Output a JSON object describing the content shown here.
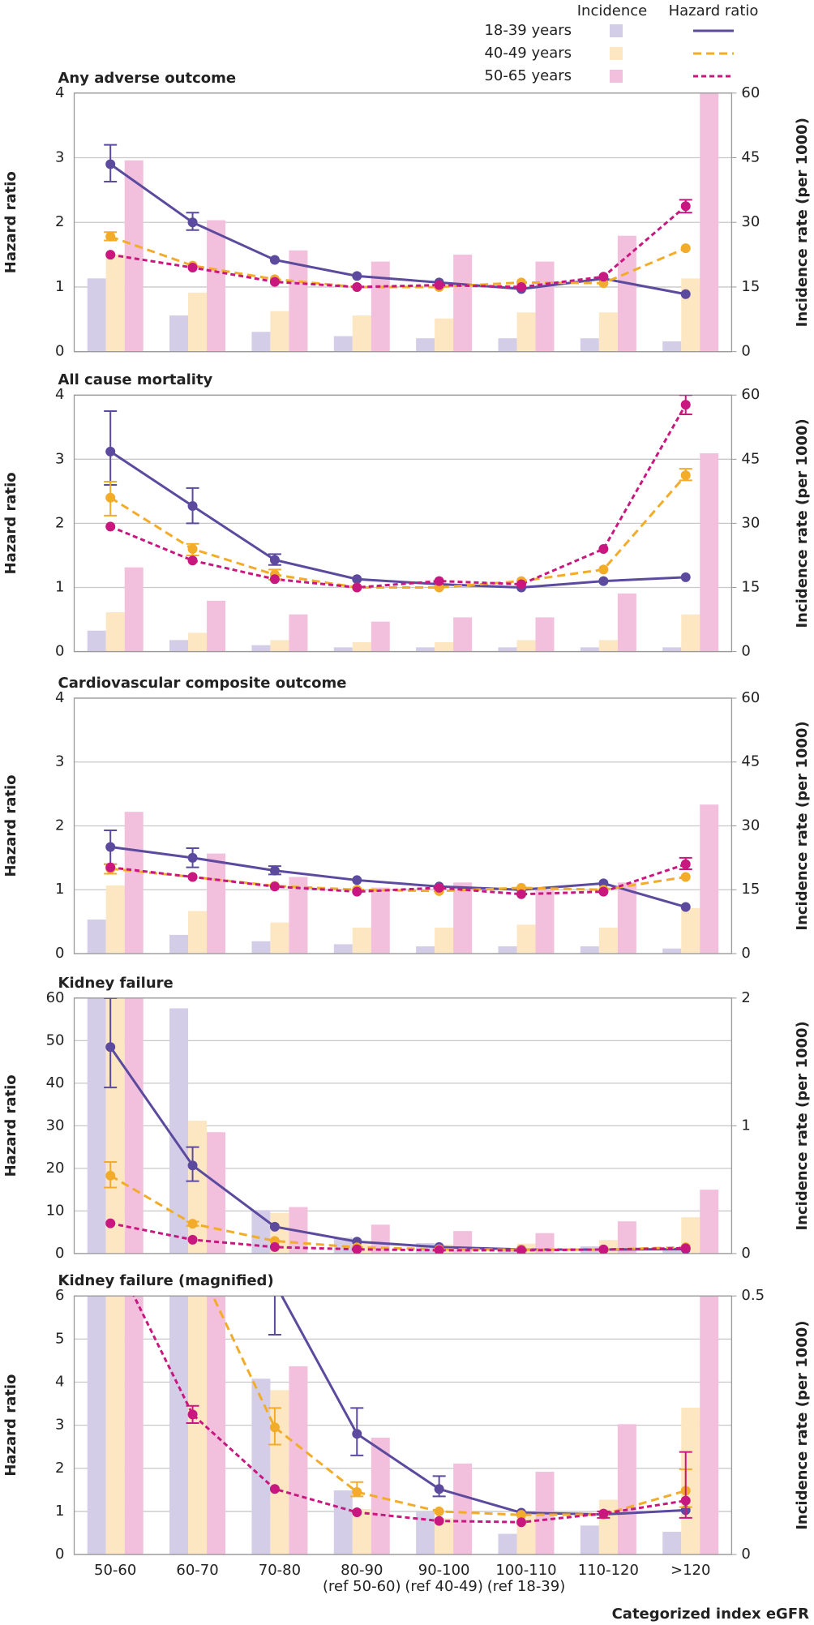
{
  "legend": {
    "incidence_header": "Incidence",
    "hazard_header": "Hazard ratio",
    "groups": [
      {
        "name": "18-39 years",
        "bar_color": "#d3cde8",
        "line_color": "#5b4a9e",
        "line_style": "solid"
      },
      {
        "name": "40-49 years",
        "bar_color": "#fde7c2",
        "line_color": "#f2ac2a",
        "line_style": "dashed"
      },
      {
        "name": "50-65 years",
        "bar_color": "#f2bfdd",
        "line_color": "#c8187f",
        "line_style": "dotted"
      }
    ]
  },
  "categories": [
    "50-60",
    "60-70",
    "70-80",
    "80-90",
    "90-100",
    "100-110",
    "110-120",
    ">120"
  ],
  "category_notes": [
    null,
    null,
    null,
    "(ref 50-60)",
    "(ref 40-49)",
    "(ref 18-39)",
    null,
    null
  ],
  "xlabel": "Categorized index eGFR",
  "chart_data": [
    {
      "type": "bar_line",
      "title": "Any adverse outcome",
      "ylabel": "Hazard ratio",
      "y2label": "Incidence rate (per 1000)",
      "ylim": [
        0,
        4
      ],
      "yticks": [
        0,
        1,
        2,
        3,
        4
      ],
      "y2lim": [
        0,
        60
      ],
      "y2ticks": [
        0,
        15,
        30,
        45,
        60
      ],
      "grid": true,
      "incidence": [
        [
          17,
          8.4,
          4.6,
          3.6,
          3.1,
          3.1,
          3.1,
          2.4
        ],
        [
          22.5,
          13.7,
          9.4,
          8.4,
          7.7,
          9.1,
          9.1,
          17
        ],
        [
          44.4,
          30.5,
          23.5,
          20.9,
          22.5,
          20.9,
          26.9,
          60
        ]
      ],
      "hazard_ratio": [
        [
          2.9,
          2.0,
          1.42,
          1.17,
          1.07,
          0.97,
          1.13,
          0.89
        ],
        [
          1.78,
          1.33,
          1.12,
          1.0,
          1.0,
          1.07,
          1.06,
          1.6
        ],
        [
          1.5,
          1.3,
          1.08,
          1.0,
          1.03,
          1.0,
          1.16,
          2.25
        ]
      ],
      "hr_lower": [
        [
          2.63,
          1.88,
          null,
          null,
          null,
          null,
          null,
          null
        ],
        [
          1.72,
          null,
          null,
          null,
          null,
          null,
          null,
          null
        ],
        [
          null,
          null,
          null,
          null,
          null,
          null,
          null,
          2.15
        ]
      ],
      "hr_upper": [
        [
          3.2,
          2.15,
          null,
          null,
          null,
          null,
          null,
          null
        ],
        [
          1.85,
          null,
          null,
          null,
          null,
          null,
          null,
          null
        ],
        [
          null,
          null,
          null,
          null,
          null,
          null,
          null,
          2.35
        ]
      ]
    },
    {
      "type": "bar_line",
      "title": "All cause mortality",
      "ylabel": "Hazard ratio",
      "y2label": "Incidence rate (per 1000)",
      "ylim": [
        0,
        4
      ],
      "yticks": [
        0,
        1,
        2,
        3,
        4
      ],
      "y2lim": [
        0,
        60
      ],
      "y2ticks": [
        0,
        15,
        30,
        45,
        60
      ],
      "grid": true,
      "incidence": [
        [
          4.9,
          2.7,
          1.5,
          1,
          1,
          1,
          1,
          1
        ],
        [
          9.2,
          4.4,
          2.7,
          2.2,
          2.2,
          2.7,
          2.7,
          8.7
        ],
        [
          19.7,
          11.9,
          8.7,
          7,
          8,
          8,
          13.6,
          46.4
        ]
      ],
      "hazard_ratio": [
        [
          3.12,
          2.27,
          1.43,
          1.13,
          1.05,
          1.0,
          1.1,
          1.16
        ],
        [
          2.4,
          1.6,
          1.2,
          1.0,
          1.0,
          1.1,
          1.28,
          2.75
        ],
        [
          1.95,
          1.42,
          1.13,
          1.0,
          1.1,
          1.05,
          1.6,
          3.85
        ]
      ],
      "hr_lower": [
        [
          2.6,
          2.0,
          1.35,
          null,
          null,
          null,
          null,
          null
        ],
        [
          2.12,
          1.5,
          1.12,
          null,
          null,
          null,
          null,
          2.67
        ],
        [
          null,
          null,
          null,
          null,
          null,
          null,
          null,
          3.7
        ]
      ],
      "hr_upper": [
        [
          3.75,
          2.55,
          1.52,
          null,
          null,
          null,
          null,
          null
        ],
        [
          2.65,
          1.68,
          1.28,
          null,
          null,
          null,
          null,
          2.85
        ],
        [
          null,
          null,
          null,
          null,
          null,
          null,
          null,
          4.0
        ]
      ]
    },
    {
      "type": "bar_line",
      "title": "Cardiovascular composite outcome",
      "ylabel": "Hazard ratio",
      "y2label": "Incidence rate (per 1000)",
      "ylim": [
        0,
        4
      ],
      "yticks": [
        0,
        1,
        2,
        3,
        4
      ],
      "y2lim": [
        0,
        60
      ],
      "y2ticks": [
        0,
        15,
        30,
        45,
        60
      ],
      "grid": true,
      "incidence": [
        [
          8,
          4.4,
          2.9,
          2.2,
          1.7,
          1.7,
          1.7,
          1.2
        ],
        [
          16,
          10,
          7.3,
          6.1,
          6.1,
          6.8,
          6.1,
          10.7
        ],
        [
          33.3,
          23.5,
          18,
          15.5,
          16.7,
          15,
          16.7,
          35
        ]
      ],
      "hazard_ratio": [
        [
          1.67,
          1.5,
          1.3,
          1.15,
          1.05,
          1.0,
          1.1,
          0.73
        ],
        [
          1.33,
          1.2,
          1.06,
          1.0,
          0.98,
          1.03,
          1.0,
          1.2
        ],
        [
          1.35,
          1.2,
          1.05,
          0.97,
          1.03,
          0.93,
          0.97,
          1.4
        ]
      ],
      "hr_lower": [
        [
          1.4,
          1.35,
          1.24,
          null,
          null,
          null,
          null,
          null
        ],
        [
          1.25,
          null,
          null,
          null,
          null,
          null,
          null,
          null
        ],
        [
          null,
          null,
          null,
          null,
          null,
          null,
          null,
          1.32
        ]
      ],
      "hr_upper": [
        [
          1.93,
          1.65,
          1.37,
          null,
          null,
          null,
          null,
          null
        ],
        [
          1.4,
          null,
          null,
          null,
          null,
          null,
          null,
          null
        ],
        [
          null,
          null,
          null,
          null,
          null,
          null,
          null,
          1.5
        ]
      ]
    },
    {
      "type": "bar_line",
      "title": "Kidney failure",
      "ylabel": "Hazard ratio",
      "y2label": "Incidence rate (per 1000)",
      "ylim": [
        0,
        60
      ],
      "yticks": [
        0,
        10,
        20,
        30,
        40,
        50,
        60
      ],
      "y2lim": [
        0,
        2
      ],
      "y2ticks": [
        0,
        1,
        2
      ],
      "grid": true,
      "incidence": [
        [
          2,
          1.92,
          0.34,
          0.124,
          0.082,
          0.04,
          0.056,
          0.044
        ],
        [
          2,
          1.04,
          0.318,
          0.088,
          0.07,
          0.078,
          0.106,
          0.284
        ],
        [
          2,
          0.95,
          0.364,
          0.226,
          0.176,
          0.16,
          0.252,
          0.5
        ]
      ],
      "hazard_ratio": [
        [
          48.5,
          20.7,
          6.3,
          2.8,
          1.52,
          0.97,
          0.93,
          1.03
        ],
        [
          18.3,
          7.0,
          2.95,
          1.45,
          1.0,
          0.92,
          0.93,
          1.48
        ],
        [
          7.1,
          3.25,
          1.52,
          0.98,
          0.78,
          0.75,
          0.95,
          1.25
        ]
      ],
      "hr_lower": [
        [
          39,
          17,
          null,
          null,
          null,
          null,
          null,
          null
        ],
        [
          15.5,
          6.5,
          null,
          null,
          null,
          null,
          null,
          null
        ],
        [
          null,
          null,
          null,
          null,
          null,
          null,
          null,
          null
        ]
      ],
      "hr_upper": [
        [
          60,
          25,
          null,
          null,
          null,
          null,
          null,
          null
        ],
        [
          21.5,
          7.5,
          null,
          null,
          null,
          null,
          null,
          null
        ],
        [
          null,
          null,
          null,
          null,
          null,
          null,
          null,
          null
        ]
      ]
    },
    {
      "type": "bar_line",
      "title": "Kidney failure (magnified)",
      "ylabel": "Hazard ratio",
      "y2label": "Incidence rate (per 1000)",
      "ylim": [
        0,
        6
      ],
      "yticks": [
        0,
        1,
        2,
        3,
        4,
        5,
        6
      ],
      "y2lim": [
        0,
        0.5
      ],
      "y2ticks": [
        0,
        0.5
      ],
      "grid": true,
      "incidence": [
        [
          2,
          1.92,
          0.34,
          0.124,
          0.082,
          0.04,
          0.056,
          0.044
        ],
        [
          2,
          1.04,
          0.318,
          0.088,
          0.07,
          0.078,
          0.106,
          0.284
        ],
        [
          2,
          0.95,
          0.364,
          0.226,
          0.176,
          0.16,
          0.252,
          0.5
        ]
      ],
      "hazard_ratio": [
        [
          48.5,
          20.7,
          6.3,
          2.8,
          1.52,
          0.97,
          0.93,
          1.03
        ],
        [
          18.3,
          7.0,
          2.95,
          1.45,
          1.0,
          0.92,
          0.93,
          1.48
        ],
        [
          7.1,
          3.25,
          1.52,
          0.98,
          0.78,
          0.75,
          0.95,
          1.25
        ]
      ],
      "hr_lower": [
        [
          null,
          null,
          5.1,
          2.3,
          1.35,
          null,
          null,
          null
        ],
        [
          null,
          null,
          2.55,
          1.35,
          null,
          null,
          null,
          1.1
        ],
        [
          null,
          3.05,
          null,
          null,
          null,
          null,
          0.85,
          0.85
        ]
      ],
      "hr_upper": [
        [
          null,
          null,
          6.5,
          3.4,
          1.82,
          null,
          null,
          null
        ],
        [
          null,
          null,
          3.4,
          1.68,
          null,
          null,
          null,
          1.98
        ],
        [
          null,
          3.45,
          null,
          null,
          null,
          null,
          1.0,
          2.38
        ]
      ]
    }
  ]
}
